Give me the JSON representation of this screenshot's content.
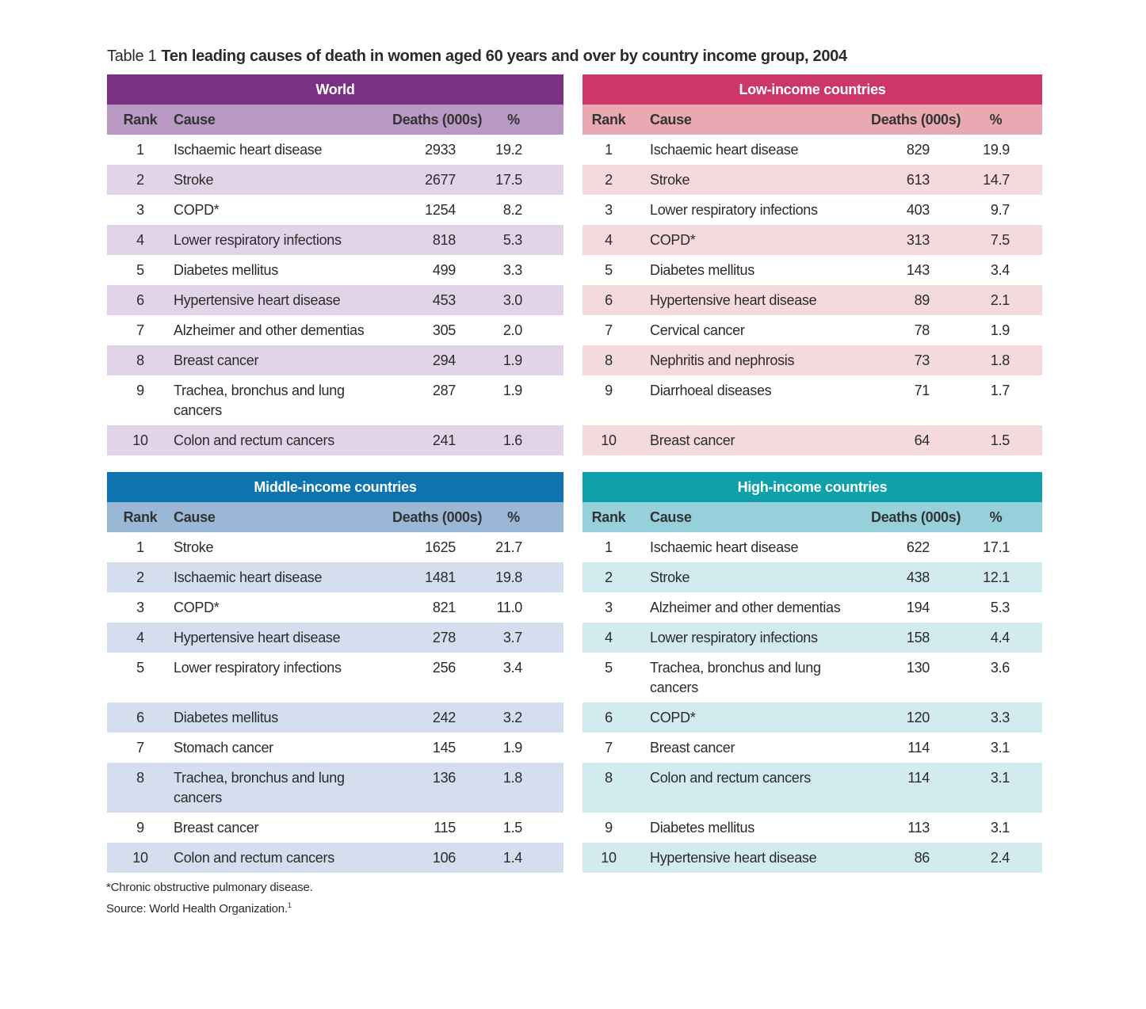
{
  "title": {
    "label": "Table 1",
    "text": "Ten leading causes of death in women aged 60 years and over by country income group, 2004"
  },
  "columns": {
    "rank": "Rank",
    "cause": "Cause",
    "deaths": "Deaths (000s)",
    "pct": "%"
  },
  "panels": [
    {
      "name": "World",
      "header_color": "#7a3183",
      "colhead_color": "#b99ac5",
      "stripe_color": "#e2d4e8",
      "rows": [
        {
          "rank": "1",
          "cause": "Ischaemic heart disease",
          "deaths": "2933",
          "pct": "19.2"
        },
        {
          "rank": "2",
          "cause": "Stroke",
          "deaths": "2677",
          "pct": "17.5"
        },
        {
          "rank": "3",
          "cause": "COPD*",
          "deaths": "1254",
          "pct": "8.2"
        },
        {
          "rank": "4",
          "cause": "Lower respiratory infections",
          "deaths": "818",
          "pct": "5.3"
        },
        {
          "rank": "5",
          "cause": "Diabetes mellitus",
          "deaths": "499",
          "pct": "3.3"
        },
        {
          "rank": "6",
          "cause": "Hypertensive heart disease",
          "deaths": "453",
          "pct": "3.0"
        },
        {
          "rank": "7",
          "cause": "Alzheimer and other dementias",
          "deaths": "305",
          "pct": "2.0"
        },
        {
          "rank": "8",
          "cause": "Breast cancer",
          "deaths": "294",
          "pct": "1.9"
        },
        {
          "rank": "9",
          "cause": "Trachea, bronchus and lung cancers",
          "deaths": "287",
          "pct": "1.9"
        },
        {
          "rank": "10",
          "cause": "Colon and rectum cancers",
          "deaths": "241",
          "pct": "1.6"
        }
      ]
    },
    {
      "name": "Low-income countries",
      "header_color": "#cc3768",
      "colhead_color": "#e9a9b2",
      "stripe_color": "#f5dadd",
      "rows": [
        {
          "rank": "1",
          "cause": "Ischaemic heart disease",
          "deaths": "829",
          "pct": "19.9"
        },
        {
          "rank": "2",
          "cause": "Stroke",
          "deaths": "613",
          "pct": "14.7"
        },
        {
          "rank": "3",
          "cause": "Lower respiratory infections",
          "deaths": "403",
          "pct": "9.7"
        },
        {
          "rank": "4",
          "cause": "COPD*",
          "deaths": "313",
          "pct": "7.5"
        },
        {
          "rank": "5",
          "cause": "Diabetes mellitus",
          "deaths": "143",
          "pct": "3.4"
        },
        {
          "rank": "6",
          "cause": "Hypertensive heart disease",
          "deaths": "89",
          "pct": "2.1"
        },
        {
          "rank": "7",
          "cause": "Cervical cancer",
          "deaths": "78",
          "pct": "1.9"
        },
        {
          "rank": "8",
          "cause": "Nephritis and nephrosis",
          "deaths": "73",
          "pct": "1.8"
        },
        {
          "rank": "9",
          "cause": "Diarrhoeal diseases",
          "deaths": "71",
          "pct": "1.7"
        },
        {
          "rank": "10",
          "cause": "Breast cancer",
          "deaths": "64",
          "pct": "1.5"
        }
      ]
    },
    {
      "name": "Middle-income countries",
      "header_color": "#0f73b0",
      "colhead_color": "#9ab7d6",
      "stripe_color": "#d4deee",
      "rows": [
        {
          "rank": "1",
          "cause": "Stroke",
          "deaths": "1625",
          "pct": "21.7"
        },
        {
          "rank": "2",
          "cause": "Ischaemic heart disease",
          "deaths": "1481",
          "pct": "19.8"
        },
        {
          "rank": "3",
          "cause": "COPD*",
          "deaths": "821",
          "pct": "11.0"
        },
        {
          "rank": "4",
          "cause": "Hypertensive heart disease",
          "deaths": "278",
          "pct": "3.7"
        },
        {
          "rank": "5",
          "cause": "Lower respiratory infections",
          "deaths": "256",
          "pct": "3.4"
        },
        {
          "rank": "6",
          "cause": "Diabetes mellitus",
          "deaths": "242",
          "pct": "3.2"
        },
        {
          "rank": "7",
          "cause": "Stomach cancer",
          "deaths": "145",
          "pct": "1.9"
        },
        {
          "rank": "8",
          "cause": "Trachea, bronchus and lung cancers",
          "deaths": "136",
          "pct": "1.8"
        },
        {
          "rank": "9",
          "cause": "Breast cancer",
          "deaths": "115",
          "pct": "1.5"
        },
        {
          "rank": "10",
          "cause": "Colon and rectum cancers",
          "deaths": "106",
          "pct": "1.4"
        }
      ]
    },
    {
      "name": "High-income countries",
      "header_color": "#0fa1ab",
      "colhead_color": "#95d0db",
      "stripe_color": "#d2ebef",
      "rows": [
        {
          "rank": "1",
          "cause": "Ischaemic heart disease",
          "deaths": "622",
          "pct": "17.1"
        },
        {
          "rank": "2",
          "cause": "Stroke",
          "deaths": "438",
          "pct": "12.1"
        },
        {
          "rank": "3",
          "cause": "Alzheimer and other dementias",
          "deaths": "194",
          "pct": "5.3"
        },
        {
          "rank": "4",
          "cause": "Lower respiratory infections",
          "deaths": "158",
          "pct": "4.4"
        },
        {
          "rank": "5",
          "cause": "Trachea, bronchus and lung cancers",
          "deaths": "130",
          "pct": "3.6"
        },
        {
          "rank": "6",
          "cause": "COPD*",
          "deaths": "120",
          "pct": "3.3"
        },
        {
          "rank": "7",
          "cause": "Breast cancer",
          "deaths": "114",
          "pct": "3.1"
        },
        {
          "rank": "8",
          "cause": "Colon and rectum cancers",
          "deaths": "114",
          "pct": "3.1"
        },
        {
          "rank": "9",
          "cause": "Diabetes mellitus",
          "deaths": "113",
          "pct": "3.1"
        },
        {
          "rank": "10",
          "cause": "Hypertensive heart disease",
          "deaths": "86",
          "pct": "2.4"
        }
      ]
    }
  ],
  "footnote": {
    "line1": "*Chronic obstructive pulmonary disease.",
    "line2": "Source: World Health Organization.",
    "ref": "1"
  }
}
